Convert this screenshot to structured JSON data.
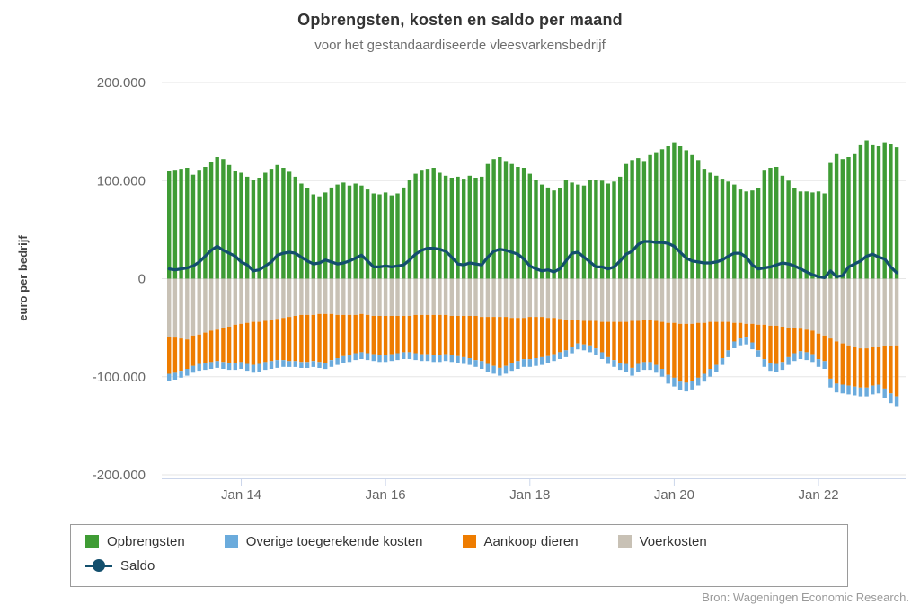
{
  "title": "Opbrengsten, kosten en saldo per maand",
  "subtitle": "voor het gestandaardiseerde vleesvarkensbedrijf",
  "source": "Bron: Wageningen Economic Research.",
  "colors": {
    "opbrengsten": "#3f9c35",
    "overige": "#6babdc",
    "aankoop": "#ee7c00",
    "voerkosten": "#c8c1b5",
    "saldo": "#134f6d",
    "grid": "#e6e6e6",
    "axis": "#ccd6eb",
    "axis_label": "#666666",
    "y_title": "#404040"
  },
  "y_axis": {
    "title": "euro per bedrijf",
    "tick_values": [
      200000,
      100000,
      0,
      -100000,
      -200000
    ],
    "tick_labels": [
      "200.000",
      "100.000",
      "0",
      "-100.000",
      "-200.000"
    ]
  },
  "x_axis": {
    "tick_labels": [
      "Jan 14",
      "Jan 16",
      "Jan 18",
      "Jan 20",
      "Jan 22"
    ],
    "tick_month_indices": [
      12,
      36,
      60,
      84,
      108
    ]
  },
  "legend": {
    "opbrengsten": "Opbrengsten",
    "overige": "Overige toegerekende kosten",
    "aankoop": "Aankoop dieren",
    "voerkosten": "Voerkosten",
    "saldo": "Saldo"
  },
  "chart_data": {
    "type": "bar",
    "subtype": "stacked-columns-with-line",
    "x_range_estimate": "monthly, Jan 2013 - Feb 2023 (122 months)",
    "ylim": [
      -200000,
      200000
    ],
    "grid": true,
    "legend_position": "bottom",
    "series": [
      {
        "name": "Opbrengsten",
        "type": "column",
        "color": "#3f9c35",
        "values": [
          110000,
          111000,
          112000,
          113000,
          106000,
          111000,
          114000,
          119000,
          124000,
          122000,
          116000,
          110000,
          108000,
          104000,
          101000,
          103000,
          108000,
          112000,
          116000,
          113000,
          109000,
          104000,
          97000,
          92000,
          86000,
          84000,
          88000,
          93000,
          96000,
          98000,
          95000,
          97000,
          95000,
          91000,
          87000,
          86000,
          88000,
          85000,
          87000,
          93000,
          101000,
          107000,
          111000,
          112000,
          113000,
          108000,
          105000,
          103000,
          104000,
          102000,
          105000,
          103000,
          104000,
          117000,
          122000,
          124000,
          120000,
          117000,
          114000,
          113000,
          107000,
          101000,
          96000,
          93000,
          90000,
          92000,
          101000,
          98000,
          96000,
          95000,
          101000,
          101000,
          100000,
          97000,
          99000,
          104000,
          117000,
          121000,
          123000,
          120000,
          126000,
          129000,
          132000,
          135000,
          139000,
          135000,
          131000,
          126000,
          121000,
          112000,
          108000,
          105000,
          102000,
          99000,
          96000,
          91000,
          89000,
          90000,
          92000,
          111000,
          113000,
          114000,
          105000,
          100000,
          92000,
          89000,
          89000,
          88000,
          89000,
          87000,
          118000,
          127000,
          122000,
          124000,
          127000,
          136000,
          141000,
          136000,
          135000,
          139000,
          137000,
          134000
        ]
      },
      {
        "name": "Voerkosten",
        "type": "column",
        "color": "#c8c1b5",
        "values": [
          -59000,
          -60000,
          -61000,
          -62000,
          -58000,
          -57000,
          -55000,
          -53000,
          -52000,
          -50000,
          -49000,
          -47000,
          -46000,
          -45000,
          -44000,
          -44000,
          -43000,
          -42000,
          -41000,
          -40000,
          -39000,
          -38000,
          -37000,
          -37000,
          -37000,
          -36000,
          -36000,
          -36000,
          -37000,
          -37000,
          -37000,
          -37000,
          -36000,
          -37000,
          -38000,
          -38000,
          -38000,
          -38000,
          -38000,
          -38000,
          -38000,
          -37000,
          -37000,
          -37000,
          -37000,
          -37000,
          -37000,
          -38000,
          -38000,
          -38000,
          -38000,
          -38000,
          -39000,
          -39000,
          -39000,
          -39000,
          -39000,
          -40000,
          -40000,
          -40000,
          -39000,
          -39000,
          -39000,
          -40000,
          -40000,
          -41000,
          -42000,
          -42000,
          -42000,
          -43000,
          -43000,
          -43000,
          -44000,
          -44000,
          -44000,
          -44000,
          -44000,
          -43000,
          -43000,
          -42000,
          -42000,
          -43000,
          -44000,
          -45000,
          -45000,
          -46000,
          -46000,
          -46000,
          -45000,
          -45000,
          -44000,
          -44000,
          -44000,
          -44000,
          -45000,
          -45000,
          -46000,
          -46000,
          -47000,
          -47000,
          -48000,
          -48000,
          -49000,
          -50000,
          -50000,
          -51000,
          -52000,
          -53000,
          -56000,
          -58000,
          -61000,
          -64000,
          -66000,
          -68000,
          -70000,
          -71000,
          -71000,
          -70000,
          -70000,
          -69000,
          -69000,
          -68000
        ]
      },
      {
        "name": "Aankoop dieren",
        "type": "column",
        "color": "#ee7c00",
        "values": [
          -38000,
          -36000,
          -33000,
          -30000,
          -31000,
          -30000,
          -31000,
          -32000,
          -32000,
          -35000,
          -37000,
          -39000,
          -39000,
          -42000,
          -44000,
          -43000,
          -42000,
          -42000,
          -42000,
          -43000,
          -45000,
          -46000,
          -48000,
          -48000,
          -47000,
          -49000,
          -50000,
          -47000,
          -44000,
          -42000,
          -41000,
          -39000,
          -39000,
          -39000,
          -39000,
          -40000,
          -40000,
          -39000,
          -38000,
          -37000,
          -37000,
          -39000,
          -40000,
          -40000,
          -41000,
          -41000,
          -40000,
          -40000,
          -41000,
          -42000,
          -43000,
          -45000,
          -45000,
          -48000,
          -50000,
          -52000,
          -50000,
          -46000,
          -44000,
          -42000,
          -43000,
          -42000,
          -41000,
          -39000,
          -37000,
          -34000,
          -31000,
          -28000,
          -24000,
          -24000,
          -25000,
          -28000,
          -31000,
          -36000,
          -39000,
          -42000,
          -43000,
          -48000,
          -44000,
          -43000,
          -43000,
          -45000,
          -48000,
          -53000,
          -56000,
          -59000,
          -60000,
          -58000,
          -56000,
          -52000,
          -48000,
          -44000,
          -37000,
          -29000,
          -19000,
          -16000,
          -14000,
          -19000,
          -26000,
          -35000,
          -38000,
          -39000,
          -36000,
          -30000,
          -26000,
          -23000,
          -23000,
          -24000,
          -26000,
          -26000,
          -41000,
          -43000,
          -42000,
          -41000,
          -40000,
          -40000,
          -40000,
          -39000,
          -38000,
          -43000,
          -48000,
          -52000
        ]
      },
      {
        "name": "Overige toegerekende kosten",
        "type": "column",
        "color": "#6babdc",
        "values": [
          -7000,
          -7000,
          -7000,
          -7000,
          -7000,
          -7000,
          -7000,
          -7000,
          -7000,
          -7000,
          -7000,
          -7000,
          -7000,
          -7000,
          -8000,
          -8000,
          -8000,
          -8000,
          -8000,
          -7000,
          -6000,
          -6000,
          -6000,
          -6000,
          -6000,
          -6000,
          -6000,
          -7000,
          -7000,
          -7000,
          -7000,
          -7000,
          -7000,
          -7000,
          -7000,
          -7000,
          -7000,
          -7000,
          -7000,
          -7000,
          -7000,
          -7000,
          -7000,
          -7000,
          -7000,
          -7000,
          -7000,
          -7000,
          -7000,
          -7000,
          -7000,
          -7000,
          -8000,
          -8000,
          -8000,
          -8000,
          -8000,
          -8000,
          -8000,
          -8000,
          -8000,
          -8000,
          -8000,
          -7000,
          -7000,
          -7000,
          -7000,
          -6000,
          -6000,
          -6000,
          -7000,
          -7000,
          -7000,
          -7000,
          -7000,
          -7000,
          -8000,
          -8000,
          -8000,
          -8000,
          -8000,
          -8000,
          -8000,
          -9000,
          -9000,
          -9000,
          -9000,
          -9000,
          -8000,
          -8000,
          -8000,
          -7000,
          -7000,
          -7000,
          -7000,
          -7000,
          -7000,
          -7000,
          -7000,
          -8000,
          -8000,
          -8000,
          -8000,
          -8000,
          -8000,
          -8000,
          -8000,
          -8000,
          -8000,
          -8000,
          -9000,
          -9000,
          -9000,
          -9000,
          -9000,
          -9000,
          -9000,
          -9000,
          -9000,
          -10000,
          -10000,
          -10000
        ]
      },
      {
        "name": "Saldo",
        "type": "line",
        "color": "#134f6d",
        "values": [
          10000,
          9000,
          10000,
          11000,
          13000,
          17000,
          23000,
          29000,
          33000,
          29000,
          26000,
          23000,
          17000,
          14000,
          8000,
          9000,
          13000,
          17000,
          24000,
          26000,
          27000,
          26000,
          22000,
          18000,
          15000,
          16000,
          19000,
          17000,
          15000,
          16000,
          18000,
          21000,
          24000,
          18000,
          12000,
          12000,
          13000,
          12000,
          13000,
          14000,
          19000,
          25000,
          29000,
          31000,
          31000,
          30000,
          28000,
          22000,
          15000,
          14000,
          16000,
          15000,
          14000,
          22000,
          28000,
          30000,
          29000,
          27000,
          25000,
          20000,
          13000,
          10000,
          8000,
          9000,
          7000,
          10000,
          18000,
          26000,
          27000,
          22000,
          17000,
          12000,
          12000,
          10000,
          12000,
          18000,
          25000,
          28000,
          35000,
          38000,
          38000,
          37000,
          37000,
          36000,
          33000,
          27000,
          21000,
          18000,
          17000,
          16000,
          16000,
          17000,
          19000,
          23000,
          26000,
          26000,
          22000,
          14000,
          10000,
          11000,
          12000,
          14000,
          16000,
          15000,
          13000,
          10000,
          7000,
          4000,
          2000,
          1000,
          8000,
          2000,
          3000,
          12000,
          15000,
          18000,
          23000,
          25000,
          22000,
          20000,
          12000,
          6000
        ]
      }
    ]
  }
}
